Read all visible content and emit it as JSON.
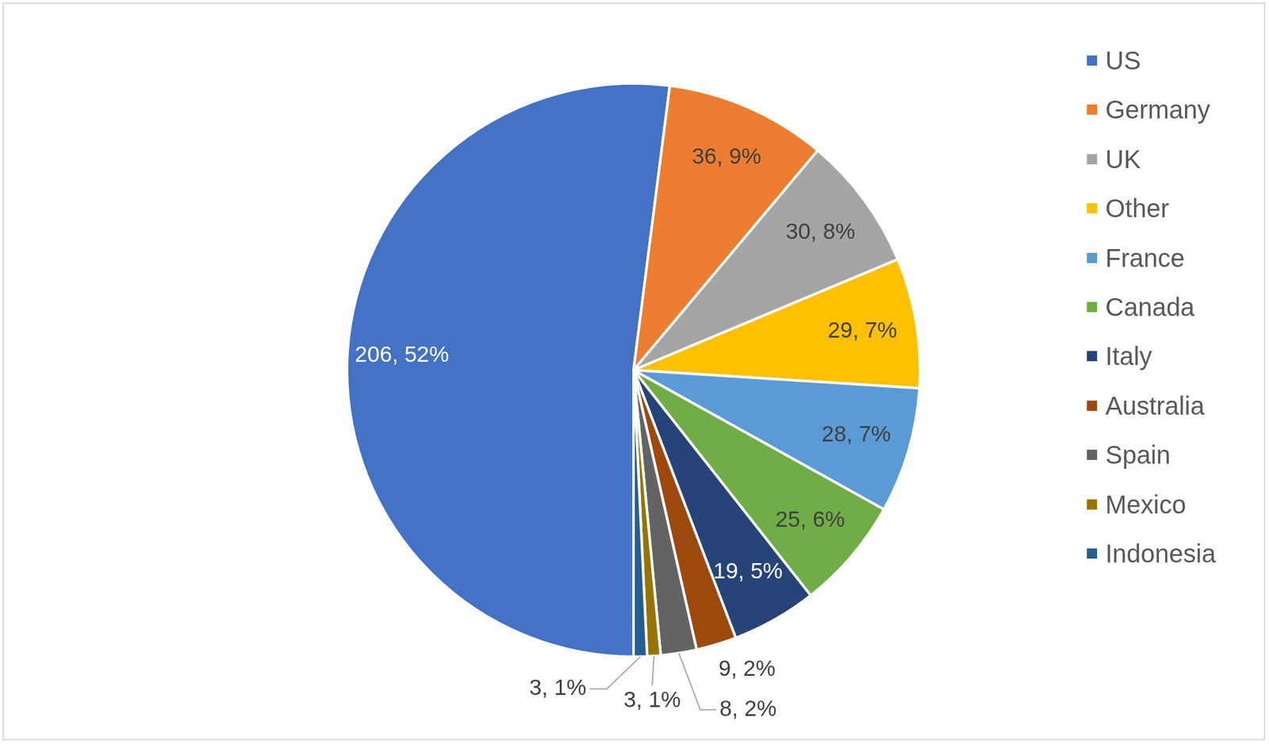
{
  "chart_data": {
    "type": "pie",
    "categories": [
      "US",
      "Germany",
      "UK",
      "Other",
      "France",
      "Canada",
      "Italy",
      "Australia",
      "Spain",
      "Mexico",
      "Indonesia"
    ],
    "values": [
      206,
      36,
      30,
      29,
      28,
      25,
      19,
      9,
      8,
      3,
      3
    ],
    "value_labels": [
      "206, 52%",
      "36, 9%",
      "30, 8%",
      "29, 7%",
      "28, 7%",
      "25, 6%",
      "19, 5%",
      "9, 2%",
      "8, 2%",
      "3, 1%",
      "3, 1%"
    ],
    "colors": [
      "#4472c4",
      "#ed7d31",
      "#a5a5a5",
      "#ffc000",
      "#5b9bd5",
      "#70ad47",
      "#264478",
      "#9e480e",
      "#636363",
      "#997300",
      "#255e91"
    ],
    "data_labels": true,
    "legend": "right"
  }
}
